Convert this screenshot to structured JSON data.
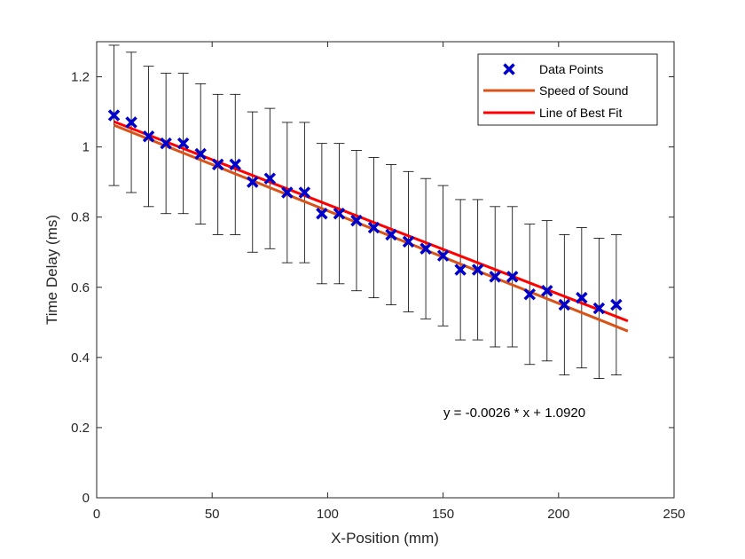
{
  "chart_data": {
    "type": "scatter",
    "xlabel": "X-Position (mm)",
    "ylabel": "Time Delay (ms)",
    "xlim": [
      0,
      250
    ],
    "ylim": [
      0,
      1.3
    ],
    "xticks": [
      "0",
      "50",
      "100",
      "150",
      "200",
      "250"
    ],
    "yticks": [
      "0",
      "0.2",
      "0.4",
      "0.6",
      "0.8",
      "1",
      "1.2"
    ],
    "grid": false,
    "legend_position": "top-right",
    "annotation": "y = -0.0026 * x + 1.0920",
    "series": [
      {
        "name": "Data Points",
        "kind": "points-with-errorbars",
        "color": "#0000CC",
        "error": 0.2,
        "x": [
          7.5,
          15,
          22.5,
          30,
          37.5,
          45,
          52.5,
          60,
          67.5,
          75,
          82.5,
          90,
          97.5,
          105,
          112.5,
          120,
          127.5,
          135,
          142.5,
          150,
          157.5,
          165,
          172.5,
          180,
          187.5,
          195,
          202.5,
          210,
          217.5,
          225
        ],
        "y": [
          1.09,
          1.07,
          1.03,
          1.01,
          1.01,
          0.98,
          0.95,
          0.95,
          0.9,
          0.91,
          0.87,
          0.87,
          0.81,
          0.81,
          0.79,
          0.77,
          0.75,
          0.73,
          0.71,
          0.69,
          0.65,
          0.65,
          0.63,
          0.63,
          0.58,
          0.59,
          0.55,
          0.57,
          0.54,
          0.55
        ]
      },
      {
        "name": "Speed of Sound",
        "kind": "line",
        "color": "#D95319",
        "x": [
          7.5,
          230
        ],
        "y": [
          1.062,
          0.475
        ]
      },
      {
        "name": "Line of Best Fit",
        "kind": "line",
        "color": "#FF0000",
        "x": [
          7.5,
          230
        ],
        "y": [
          1.072,
          0.504
        ]
      }
    ]
  }
}
